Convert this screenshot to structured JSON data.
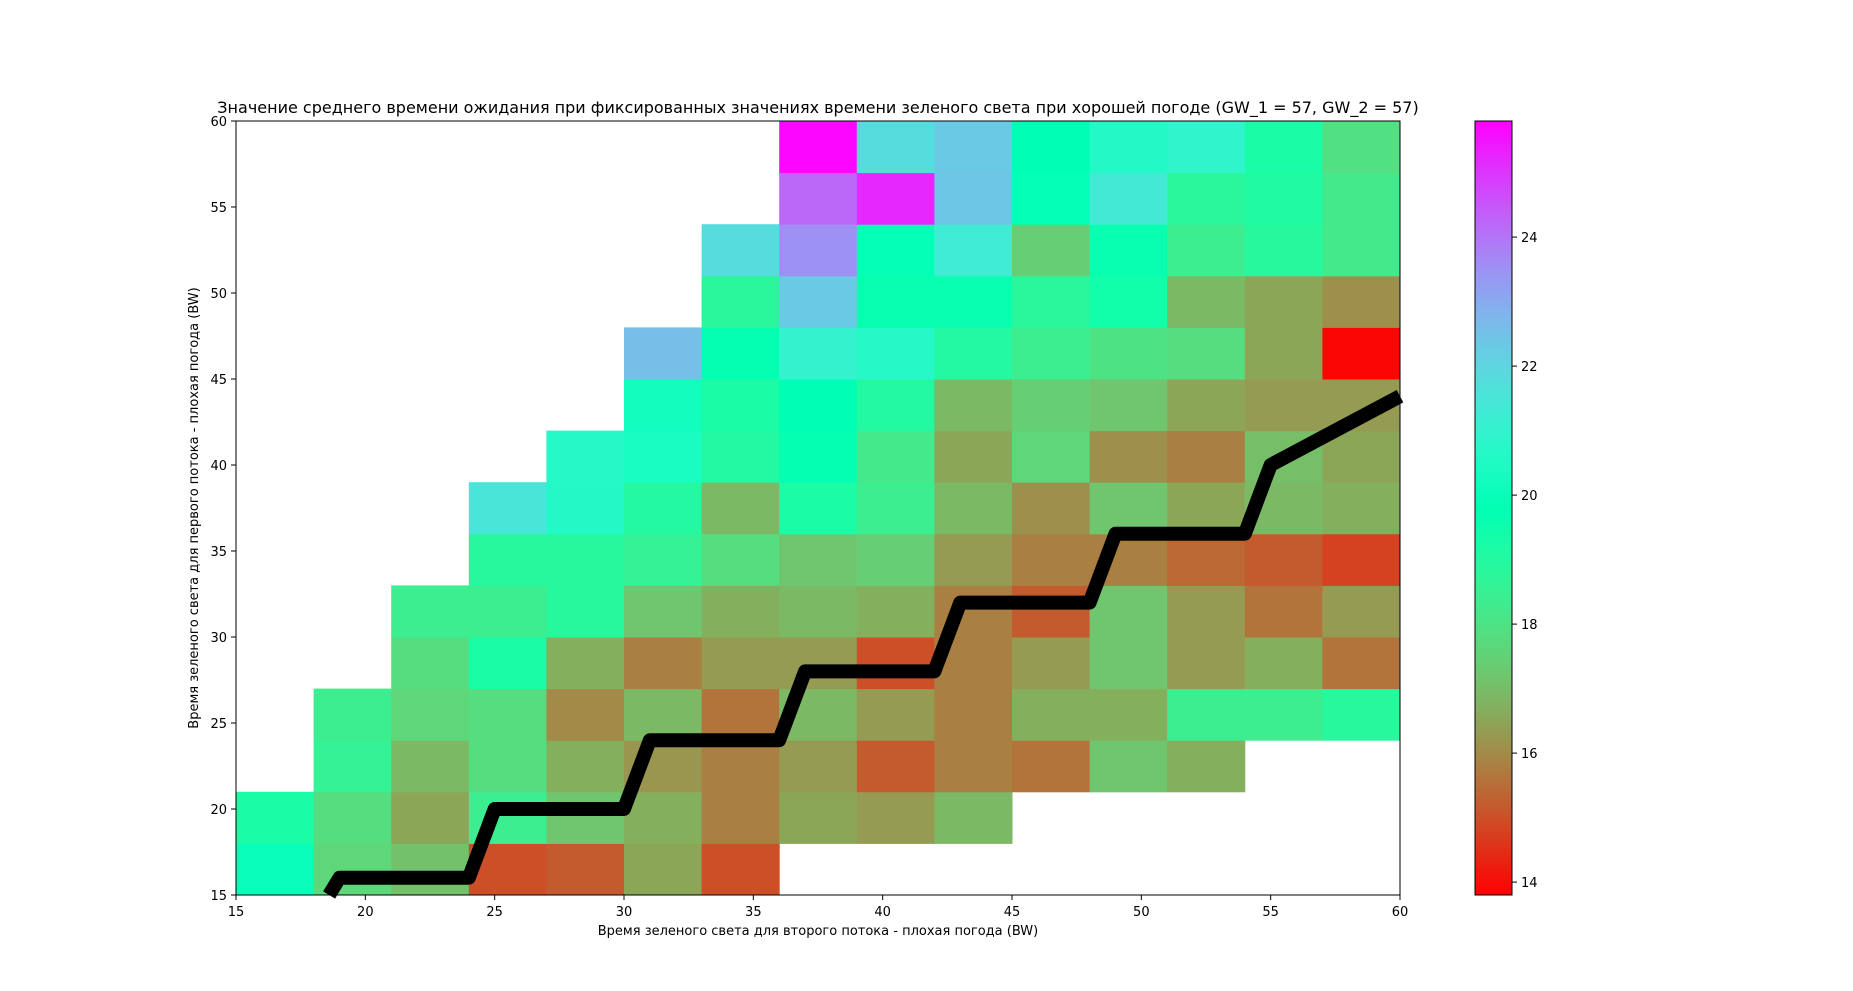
{
  "chart_data": {
    "type": "heatmap",
    "title": "Значение среднего времени ожидания при фиксированных значениях времени зеленого света при хорошей погоде (GW_1 = 57, GW_2 = 57)",
    "xlabel": "Время зеленого света для второго потока - плохая погода (BW)",
    "ylabel": "Время зеленого света для первого потока - плохая погода (BW)",
    "xlim": [
      15,
      60
    ],
    "ylim": [
      15,
      60
    ],
    "x_ticks": [
      15,
      20,
      25,
      30,
      35,
      40,
      45,
      50,
      55,
      60
    ],
    "y_ticks": [
      15,
      20,
      25,
      30,
      35,
      40,
      45,
      50,
      55,
      60
    ],
    "x_tick_labels": [
      "15",
      "20",
      "25",
      "30",
      "35",
      "40",
      "45",
      "50",
      "55",
      "60"
    ],
    "y_tick_labels": [
      "15",
      "20",
      "25",
      "30",
      "35",
      "40",
      "45",
      "50",
      "55",
      "60"
    ],
    "cell_size": 3,
    "colormap": "rainbow",
    "colorbar": {
      "vmin": 13.8,
      "vmax": 25.8,
      "ticks": [
        14,
        16,
        18,
        20,
        22,
        24
      ],
      "tick_labels": [
        "14",
        "16",
        "18",
        "20",
        "22",
        "24"
      ]
    },
    "grid": false,
    "rows_y_start": [
      15,
      18,
      21,
      24,
      27,
      30,
      33,
      36,
      39,
      42,
      45,
      48,
      51,
      54,
      57
    ],
    "cols_x_start": [
      15,
      18,
      21,
      24,
      27,
      30,
      33,
      36,
      39,
      42,
      45,
      48,
      51,
      54,
      57
    ],
    "values": [
      [
        20.0,
        17.6,
        17.1,
        15.0,
        15.2,
        16.5,
        15.0,
        null,
        null,
        null,
        null,
        null,
        null,
        null,
        null
      ],
      [
        19.2,
        17.8,
        16.5,
        18.4,
        17.2,
        16.7,
        15.8,
        16.5,
        16.3,
        16.9,
        null,
        null,
        null,
        null,
        null
      ],
      [
        null,
        18.6,
        16.9,
        17.8,
        16.7,
        16.2,
        15.8,
        16.3,
        15.2,
        15.8,
        15.6,
        17.2,
        16.7,
        null,
        null
      ],
      [
        null,
        18.4,
        17.6,
        17.8,
        16.0,
        16.9,
        15.6,
        16.9,
        16.3,
        15.8,
        16.7,
        16.7,
        18.4,
        18.4,
        18.9
      ],
      [
        null,
        null,
        17.8,
        19.2,
        16.7,
        15.8,
        16.3,
        16.3,
        15.0,
        15.8,
        16.3,
        17.2,
        16.3,
        16.7,
        15.6
      ],
      [
        null,
        null,
        18.4,
        18.4,
        18.9,
        17.2,
        16.7,
        16.9,
        16.7,
        15.8,
        15.2,
        17.2,
        16.3,
        15.6,
        16.3
      ],
      [
        null,
        null,
        null,
        18.9,
        18.9,
        18.6,
        17.8,
        17.2,
        17.4,
        16.3,
        15.8,
        15.8,
        15.4,
        15.2,
        14.8
      ],
      [
        null,
        null,
        null,
        21.5,
        20.6,
        19.0,
        16.9,
        19.2,
        18.4,
        16.9,
        16.1,
        17.2,
        16.5,
        16.9,
        16.7
      ],
      [
        null,
        null,
        null,
        null,
        20.7,
        20.4,
        19.0,
        19.7,
        18.2,
        16.5,
        17.6,
        16.1,
        15.8,
        17.0,
        16.5
      ],
      [
        null,
        null,
        null,
        null,
        null,
        20.2,
        19.2,
        19.8,
        19.0,
        16.9,
        17.4,
        17.2,
        16.5,
        16.3,
        16.3
      ],
      [
        null,
        null,
        null,
        null,
        null,
        22.6,
        19.7,
        21.0,
        20.7,
        19.0,
        18.4,
        18.0,
        17.8,
        16.5,
        13.9
      ],
      [
        null,
        null,
        null,
        null,
        null,
        null,
        18.8,
        22.3,
        19.6,
        19.6,
        18.8,
        19.4,
        16.9,
        16.5,
        16.1
      ],
      [
        null,
        null,
        null,
        null,
        null,
        null,
        21.8,
        23.5,
        19.9,
        21.3,
        17.4,
        19.6,
        18.4,
        18.9,
        18.2
      ],
      [
        null,
        null,
        null,
        null,
        null,
        null,
        null,
        24.2,
        25.2,
        22.4,
        19.9,
        21.4,
        18.8,
        19.1,
        18.2
      ],
      [
        null,
        null,
        null,
        null,
        null,
        null,
        null,
        25.7,
        21.8,
        22.3,
        19.8,
        20.6,
        20.9,
        19.2,
        17.9
      ]
    ],
    "line": {
      "color": "#000000",
      "x": [
        18.6,
        19.0,
        24.0,
        25.0,
        30.0,
        31.0,
        36.0,
        37.0,
        42.0,
        43.0,
        48.0,
        49.0,
        54.0,
        55.0,
        60.0
      ],
      "y": [
        15.0,
        16.0,
        16.0,
        20.0,
        20.0,
        24.0,
        24.0,
        28.0,
        28.0,
        32.0,
        32.0,
        36.0,
        36.0,
        40.0,
        44.0
      ]
    }
  }
}
